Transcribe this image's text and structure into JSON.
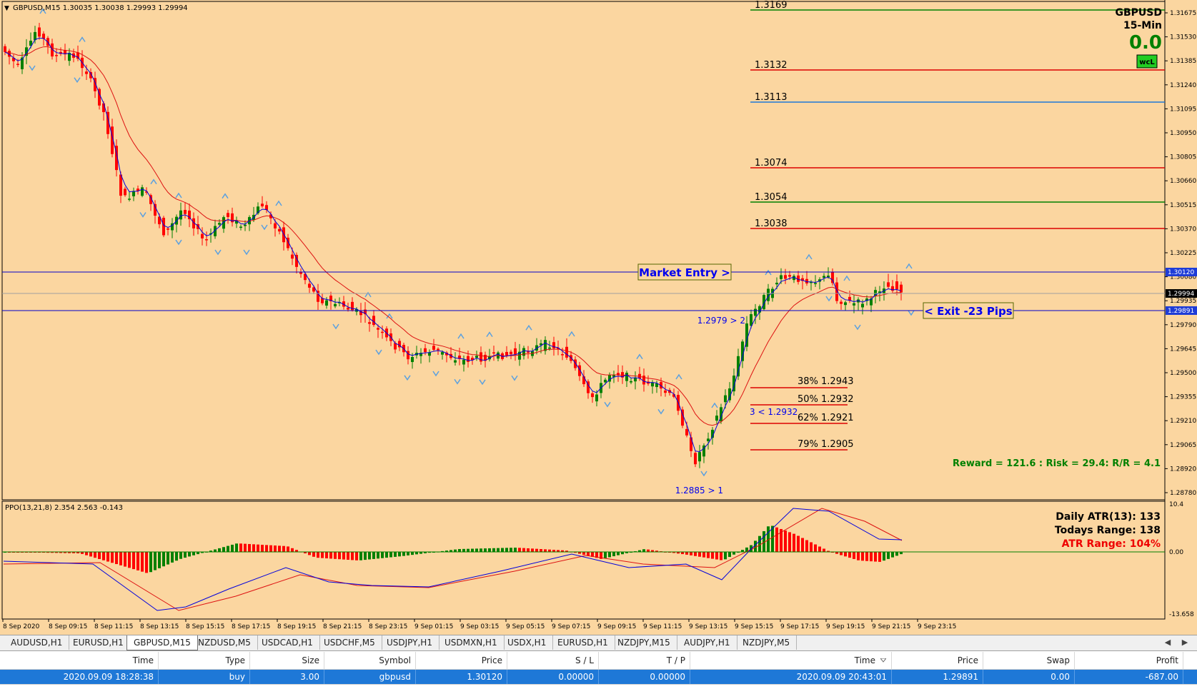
{
  "chart": {
    "header": "GBPUSD,M15  1.30035 1.30038 1.29993 1.29994",
    "symbol": "GBPUSD",
    "timeframe": "15-Min",
    "big_value": "0.0",
    "badge": "wcL",
    "reward_risk": "Reward = 121.6 : Risk = 29.4: R/R = 4.1",
    "market_entry": "Market Entry >",
    "exit_label": "< Exit -23 Pips",
    "point_labels": [
      "1.2979 > 2",
      "3 < 1.2932",
      "1.2885 > 1"
    ],
    "levels": [
      "1.3169",
      "1.3132",
      "1.3113",
      "1.3074",
      "1.3054",
      "1.3038"
    ],
    "fibs": [
      "38% 1.2943",
      "50% 1.2932",
      "62% 1.2921",
      "79% 1.2905"
    ],
    "price_axis": [
      "1.31675",
      "1.31530",
      "1.31385",
      "1.31240",
      "1.31095",
      "1.30950",
      "1.30805",
      "1.30660",
      "1.30515",
      "1.30370",
      "1.30225",
      "1.30080",
      "1.29935",
      "1.29790",
      "1.29645",
      "1.29500",
      "1.29355",
      "1.29210",
      "1.29065",
      "1.28920",
      "1.28780"
    ],
    "price_tags": [
      "1.30120",
      "1.29994",
      "1.29891"
    ],
    "time_axis": [
      "8 Sep 2020",
      "8 Sep 09:15",
      "8 Sep 11:15",
      "8 Sep 13:15",
      "8 Sep 15:15",
      "8 Sep 17:15",
      "8 Sep 19:15",
      "8 Sep 21:15",
      "8 Sep 23:15",
      "9 Sep 01:15",
      "9 Sep 03:15",
      "9 Sep 05:15",
      "9 Sep 07:15",
      "9 Sep 09:15",
      "9 Sep 11:15",
      "9 Sep 13:15",
      "9 Sep 15:15",
      "9 Sep 17:15",
      "9 Sep 19:15",
      "9 Sep 21:15",
      "9 Sep 23:15"
    ]
  },
  "indicator": {
    "label": "PPO(13,21,8) 2.354 2.563 -0.143",
    "atr": "Daily ATR(13): 133",
    "range": "Todays Range: 138",
    "atr_range": "ATR Range: 104%",
    "axis": [
      "10.4",
      "0.00",
      "-13.658"
    ]
  },
  "tabs": [
    "AUDUSD,H1",
    "EURUSD,H1",
    "GBPUSD,M15",
    "NZDUSD,M5",
    "USDCAD,H1",
    "USDCHF,M5",
    "USDJPY,H1",
    "USDMXN,H1",
    "USDX,H1",
    "EURUSD,H1",
    "NZDJPY,M15",
    "AUDJPY,H1",
    "NZDJPY,M5"
  ],
  "tab_scroll": [
    "◀",
    "▶"
  ],
  "table": {
    "headers": [
      "Time",
      "Type",
      "Size",
      "Symbol",
      "Price",
      "S / L",
      "T / P",
      "Time",
      "Price",
      "Swap",
      "Profit"
    ],
    "row": [
      "2020.09.09 18:28:38",
      "buy",
      "3.00",
      "gbpusd",
      "1.30120",
      "0.00000",
      "0.00000",
      "2020.09.09 20:43:01",
      "1.29891",
      "0.00",
      "-687.00"
    ]
  },
  "colors": {
    "bg": "#fbd6a0",
    "bull": "#008000",
    "bear": "#ff0000",
    "ma_red": "#dd1111",
    "ma_blue": "#0000dd",
    "selected_row": "#1e78d7"
  }
}
